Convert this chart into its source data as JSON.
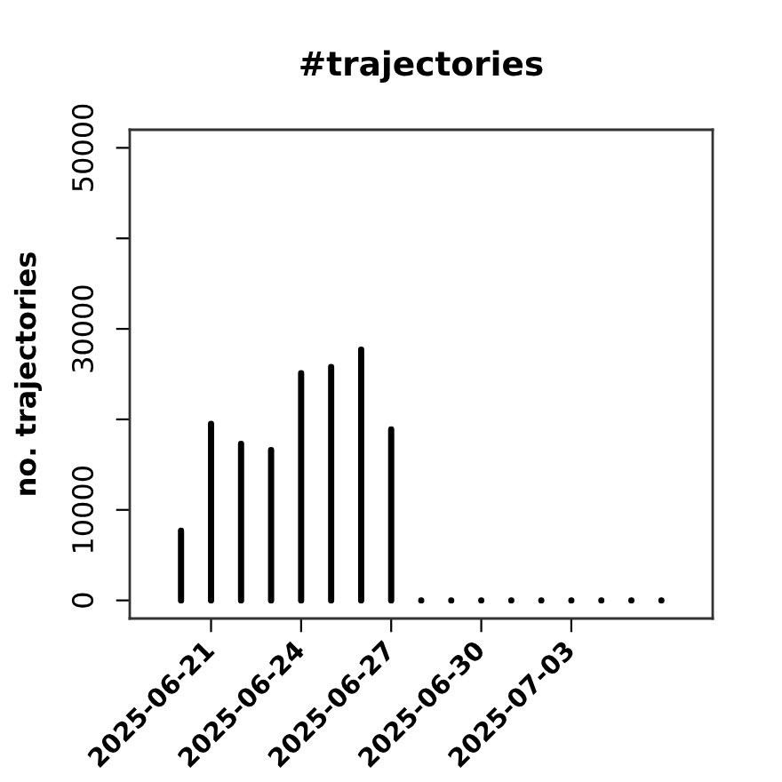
{
  "chart_data": {
    "type": "bar",
    "title": "#trajectories",
    "ylabel": "no. trajectories",
    "x": [
      "2025-06-20",
      "2025-06-21",
      "2025-06-22",
      "2025-06-23",
      "2025-06-24",
      "2025-06-25",
      "2025-06-26",
      "2025-06-27",
      "2025-06-28",
      "2025-06-29",
      "2025-06-30",
      "2025-07-01",
      "2025-07-02",
      "2025-07-03",
      "2025-07-04",
      "2025-07-05",
      "2025-07-06"
    ],
    "values": [
      7700,
      19500,
      17300,
      16600,
      25100,
      25800,
      27700,
      18900,
      0,
      0,
      0,
      0,
      0,
      0,
      0,
      0,
      0
    ],
    "color": "#000000",
    "xlim": [
      "2025-06-18T07:00",
      "2025-07-07T17:00"
    ],
    "xticks": [
      "2025-06-21",
      "2025-06-24",
      "2025-06-27",
      "2025-06-30",
      "2025-07-03"
    ],
    "ylim": [
      -2000,
      52000
    ],
    "yticks": [
      0,
      10000,
      {
        "value": 20000,
        "label": null
      },
      30000,
      {
        "value": 40000,
        "label": null
      },
      50000
    ]
  }
}
